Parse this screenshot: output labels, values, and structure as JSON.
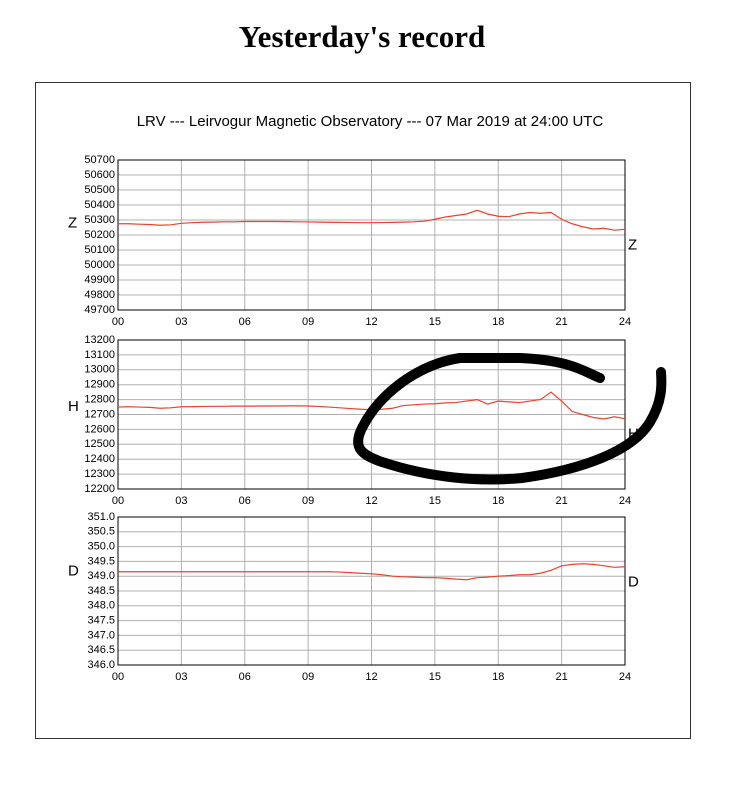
{
  "page_title": "Yesterday's record",
  "figure_title": "LRV --- Leirvogur Magnetic Observatory --- 07 Mar 2019 at 24:00 UTC",
  "chart_data": [
    {
      "type": "line",
      "ylabel": "Z",
      "x": [
        0,
        0.5,
        1,
        1.5,
        2,
        2.5,
        3,
        3.5,
        4,
        4.5,
        5,
        5.5,
        6,
        6.5,
        7,
        7.5,
        8,
        8.5,
        9,
        9.5,
        10,
        10.5,
        11,
        11.5,
        12,
        12.5,
        13,
        13.5,
        14,
        14.5,
        15,
        15.5,
        16,
        16.5,
        17,
        17.5,
        18,
        18.5,
        19,
        19.5,
        20,
        20.5,
        21,
        21.5,
        22,
        22.5,
        23,
        23.5,
        24
      ],
      "series": [
        {
          "name": "Z",
          "color": "#e8432e",
          "values": [
            50275,
            50275,
            50272,
            50270,
            50265,
            50268,
            50278,
            50282,
            50285,
            50286,
            50288,
            50288,
            50290,
            50290,
            50290,
            50290,
            50289,
            50288,
            50287,
            50286,
            50285,
            50284,
            50283,
            50282,
            50282,
            50283,
            50284,
            50286,
            50288,
            50292,
            50305,
            50320,
            50330,
            50340,
            50365,
            50340,
            50325,
            50322,
            50340,
            50350,
            50345,
            50350,
            50305,
            50275,
            50255,
            50240,
            50245,
            50232,
            50238
          ]
        }
      ],
      "xlim": [
        0,
        24
      ],
      "xticks": [
        {
          "value": 0,
          "label": "00"
        },
        {
          "value": 3,
          "label": "03"
        },
        {
          "value": 6,
          "label": "06"
        },
        {
          "value": 9,
          "label": "09"
        },
        12,
        15,
        18,
        21,
        24
      ],
      "ylim": [
        49700,
        50700
      ],
      "yticks": [
        49700,
        49800,
        49900,
        50000,
        50100,
        50200,
        50300,
        50400,
        50500,
        50600,
        50700
      ],
      "grid": true
    },
    {
      "type": "line",
      "ylabel": "H",
      "x": [
        0,
        0.5,
        1,
        1.5,
        2,
        2.5,
        3,
        3.5,
        4,
        4.5,
        5,
        5.5,
        6,
        6.5,
        7,
        7.5,
        8,
        8.5,
        9,
        9.5,
        10,
        10.5,
        11,
        11.5,
        12,
        12.5,
        13,
        13.5,
        14,
        14.5,
        15,
        15.5,
        16,
        16.5,
        17,
        17.5,
        18,
        18.5,
        19,
        19.5,
        20,
        20.5,
        21,
        21.5,
        22,
        22.5,
        23,
        23.5,
        24
      ],
      "series": [
        {
          "name": "H",
          "color": "#e8432e",
          "values": [
            12750,
            12752,
            12750,
            12748,
            12742,
            12745,
            12752,
            12752,
            12754,
            12755,
            12755,
            12756,
            12756,
            12756,
            12757,
            12757,
            12758,
            12758,
            12757,
            12754,
            12750,
            12745,
            12740,
            12735,
            12732,
            12735,
            12742,
            12760,
            12765,
            12770,
            12772,
            12778,
            12780,
            12790,
            12800,
            12770,
            12790,
            12785,
            12780,
            12790,
            12800,
            12850,
            12790,
            12720,
            12700,
            12680,
            12670,
            12685,
            12672
          ]
        }
      ],
      "xlim": [
        0,
        24
      ],
      "xticks": [
        {
          "value": 0,
          "label": "00"
        },
        {
          "value": 3,
          "label": "03"
        },
        {
          "value": 6,
          "label": "06"
        },
        {
          "value": 9,
          "label": "09"
        },
        12,
        15,
        18,
        21,
        24
      ],
      "ylim": [
        12200,
        13200
      ],
      "yticks": [
        12200,
        12300,
        12400,
        12500,
        12600,
        12700,
        12800,
        12900,
        13000,
        13100,
        13200
      ],
      "grid": true
    },
    {
      "type": "line",
      "ylabel": "D",
      "x": [
        0,
        0.5,
        1,
        1.5,
        2,
        2.5,
        3,
        3.5,
        4,
        4.5,
        5,
        5.5,
        6,
        6.5,
        7,
        7.5,
        8,
        8.5,
        9,
        9.5,
        10,
        10.5,
        11,
        11.5,
        12,
        12.5,
        13,
        13.5,
        14,
        14.5,
        15,
        15.5,
        16,
        16.5,
        17,
        17.5,
        18,
        18.5,
        19,
        19.5,
        20,
        20.5,
        21,
        21.5,
        22,
        22.5,
        23,
        23.5,
        24
      ],
      "series": [
        {
          "name": "D",
          "color": "#e8432e",
          "values": [
            349.15,
            349.15,
            349.15,
            349.15,
            349.15,
            349.15,
            349.15,
            349.15,
            349.15,
            349.15,
            349.15,
            349.15,
            349.15,
            349.15,
            349.15,
            349.15,
            349.15,
            349.15,
            349.15,
            349.15,
            349.15,
            349.14,
            349.12,
            349.1,
            349.08,
            349.05,
            349.0,
            348.98,
            348.97,
            348.95,
            348.95,
            348.93,
            348.9,
            348.88,
            348.95,
            348.97,
            349.0,
            349.02,
            349.05,
            349.05,
            349.1,
            349.2,
            349.35,
            349.4,
            349.42,
            349.4,
            349.35,
            349.3,
            349.32
          ]
        }
      ],
      "xlim": [
        0,
        24
      ],
      "xticks": [
        {
          "value": 0,
          "label": "00"
        },
        {
          "value": 3,
          "label": "03"
        },
        {
          "value": 6,
          "label": "06"
        },
        {
          "value": 9,
          "label": "09"
        },
        12,
        15,
        18,
        21,
        24
      ],
      "ylim": [
        346,
        351
      ],
      "yticks": [
        {
          "value": 346,
          "label": "346.0"
        },
        346.5,
        {
          "value": 347,
          "label": "347.0"
        },
        347.5,
        {
          "value": 348,
          "label": "348.0"
        },
        348.5,
        {
          "value": 349,
          "label": "349.0"
        },
        349.5,
        {
          "value": 350,
          "label": "350.0"
        },
        350.5,
        {
          "value": 351,
          "label": "351.0"
        }
      ],
      "grid": true
    }
  ]
}
